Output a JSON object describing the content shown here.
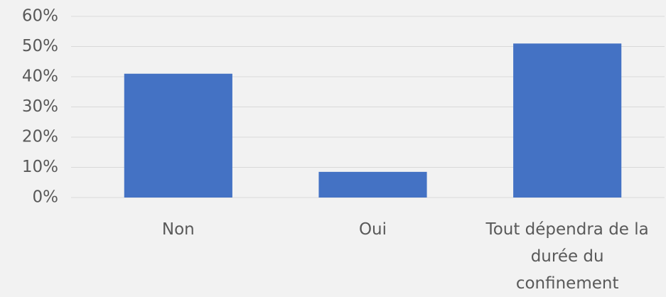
{
  "chart_data": {
    "type": "bar",
    "categories": [
      "Non",
      "Oui",
      "Tout dépendra de la durée du confinement"
    ],
    "values": [
      41,
      8.5,
      51
    ],
    "color": "#4472c4",
    "ylim": [
      0,
      60
    ],
    "yticks": [
      {
        "value": 0,
        "label": "0%"
      },
      {
        "value": 10,
        "label": "10%"
      },
      {
        "value": 20,
        "label": "20%"
      },
      {
        "value": 30,
        "label": "30%"
      },
      {
        "value": 40,
        "label": "40%"
      },
      {
        "value": 50,
        "label": "50%"
      },
      {
        "value": 60,
        "label": "60%"
      }
    ],
    "grid": true
  }
}
